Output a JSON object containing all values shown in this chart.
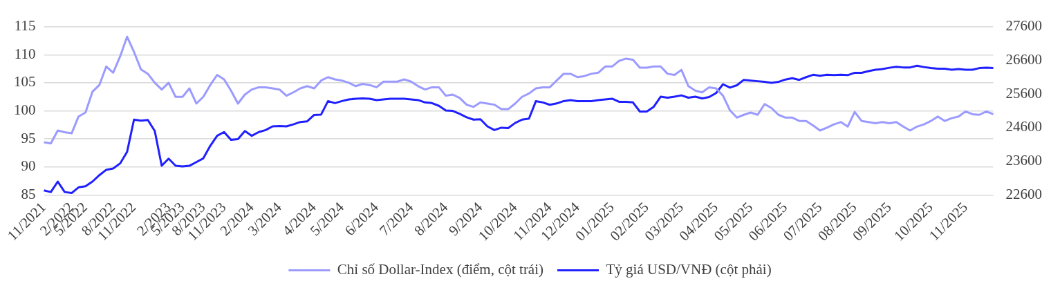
{
  "chart_data": {
    "type": "line",
    "categories": [
      "11/2021",
      null,
      null,
      null,
      "2/2022",
      null,
      "5/2022",
      null,
      null,
      null,
      "8/2022",
      null,
      null,
      "11/2022",
      null,
      null,
      null,
      null,
      "2/2023",
      null,
      "5/2023",
      null,
      null,
      "8/2023",
      null,
      null,
      "11/2023",
      null,
      null,
      null,
      "2/2024",
      null,
      null,
      null,
      "3/2024",
      null,
      null,
      null,
      null,
      "4/2024",
      null,
      null,
      null,
      "5/2024",
      null,
      null,
      null,
      null,
      "6/2024",
      null,
      null,
      null,
      null,
      "7/2024",
      null,
      null,
      null,
      null,
      "8/2024",
      null,
      null,
      null,
      null,
      "9/2024",
      null,
      null,
      null,
      null,
      "10/2024",
      null,
      null,
      null,
      null,
      "11/2024",
      null,
      null,
      null,
      "12/2024",
      null,
      null,
      null,
      null,
      "01/2025",
      null,
      null,
      null,
      null,
      "02/2025",
      null,
      null,
      null,
      null,
      "03/2025",
      null,
      null,
      null,
      null,
      "04/2025",
      null,
      null,
      null,
      null,
      "05/2025",
      null,
      null,
      null,
      null,
      "06/2025",
      null,
      null,
      null,
      null,
      "07/2025",
      null,
      null,
      null,
      null,
      "08/2025",
      null,
      null,
      null,
      null,
      "09/2025",
      null,
      null,
      null,
      null,
      null,
      "10/2025",
      null,
      null,
      null,
      null,
      "11/2025",
      null,
      null,
      null,
      null
    ],
    "series": [
      {
        "name": "Chỉ số Dollar-Index (điểm, cột trái)",
        "color": "#9b9bff",
        "values": [
          94.4,
          94.2,
          96.5,
          96.2,
          96.0,
          99.0,
          99.7,
          103.4,
          104.6,
          107.9,
          106.8,
          109.7,
          113.2,
          110.5,
          107.4,
          106.6,
          105.0,
          103.8,
          105.0,
          102.5,
          102.5,
          104.0,
          101.3,
          102.5,
          104.6,
          106.4,
          105.6,
          103.6,
          101.3,
          102.9,
          103.8,
          104.2,
          104.2,
          104.0,
          103.8,
          102.7,
          103.3,
          104.0,
          104.4,
          104.0,
          105.4,
          106.0,
          105.6,
          105.4,
          105.0,
          104.4,
          104.8,
          104.6,
          104.2,
          105.2,
          105.2,
          105.2,
          105.6,
          105.2,
          104.4,
          103.8,
          104.2,
          104.2,
          102.7,
          102.9,
          102.3,
          101.1,
          100.7,
          101.5,
          101.3,
          101.1,
          100.3,
          100.3,
          101.3,
          102.5,
          103.1,
          104.0,
          104.2,
          104.2,
          105.4,
          106.6,
          106.6,
          106.0,
          106.2,
          106.6,
          106.8,
          107.9,
          107.9,
          108.9,
          109.3,
          109.1,
          107.7,
          107.7,
          107.9,
          107.9,
          106.6,
          106.4,
          107.3,
          104.4,
          103.6,
          103.3,
          104.2,
          104.0,
          102.7,
          100.1,
          98.8,
          99.3,
          99.7,
          99.3,
          101.2,
          100.5,
          99.3,
          98.8,
          98.8,
          98.2,
          98.2,
          97.4,
          96.5,
          97.0,
          97.6,
          98.0,
          97.2,
          99.8,
          98.2,
          98.0,
          97.8,
          98.0,
          97.8,
          98.0,
          97.2,
          96.5,
          97.2,
          97.6,
          98.2,
          99.0,
          98.2,
          98.7,
          99.0,
          99.9,
          99.4,
          99.3,
          99.9,
          99.4
        ]
      },
      {
        "name": "Tỷ giá USD/VNĐ (cột phải)",
        "color": "#1f1fff",
        "axis": "y2",
        "values": [
          22740,
          22690,
          23000,
          22690,
          22660,
          22830,
          22860,
          23000,
          23190,
          23350,
          23390,
          23540,
          23880,
          24840,
          24810,
          24830,
          24500,
          23470,
          23680,
          23470,
          23450,
          23470,
          23580,
          23690,
          24060,
          24360,
          24470,
          24240,
          24260,
          24500,
          24360,
          24470,
          24530,
          24640,
          24650,
          24640,
          24700,
          24770,
          24790,
          24980,
          24990,
          25390,
          25330,
          25390,
          25440,
          25460,
          25470,
          25460,
          25420,
          25440,
          25460,
          25460,
          25460,
          25440,
          25420,
          25350,
          25330,
          25250,
          25110,
          25100,
          25010,
          24910,
          24840,
          24850,
          24640,
          24530,
          24600,
          24590,
          24740,
          24840,
          24870,
          25390,
          25350,
          25280,
          25320,
          25390,
          25420,
          25390,
          25390,
          25390,
          25420,
          25440,
          25460,
          25370,
          25370,
          25350,
          25080,
          25080,
          25220,
          25520,
          25490,
          25520,
          25560,
          25490,
          25520,
          25470,
          25510,
          25630,
          25890,
          25790,
          25860,
          26020,
          26000,
          25980,
          25960,
          25930,
          25960,
          26030,
          26070,
          26020,
          26100,
          26170,
          26140,
          26170,
          26160,
          26170,
          26160,
          26230,
          26230,
          26280,
          26320,
          26340,
          26380,
          26410,
          26390,
          26390,
          26440,
          26400,
          26370,
          26350,
          26350,
          26320,
          26340,
          26320,
          26320,
          26370,
          26380,
          26370
        ]
      }
    ],
    "ylim": [
      85,
      115
    ],
    "yticks": [
      85,
      90,
      95,
      100,
      105,
      110,
      115
    ],
    "y2lim": [
      22600,
      27600
    ],
    "y2ticks": [
      22600,
      23600,
      24600,
      25600,
      26600,
      27600
    ],
    "grid": "y",
    "legend": "bottom",
    "marker": "none",
    "line_style": "solid"
  }
}
